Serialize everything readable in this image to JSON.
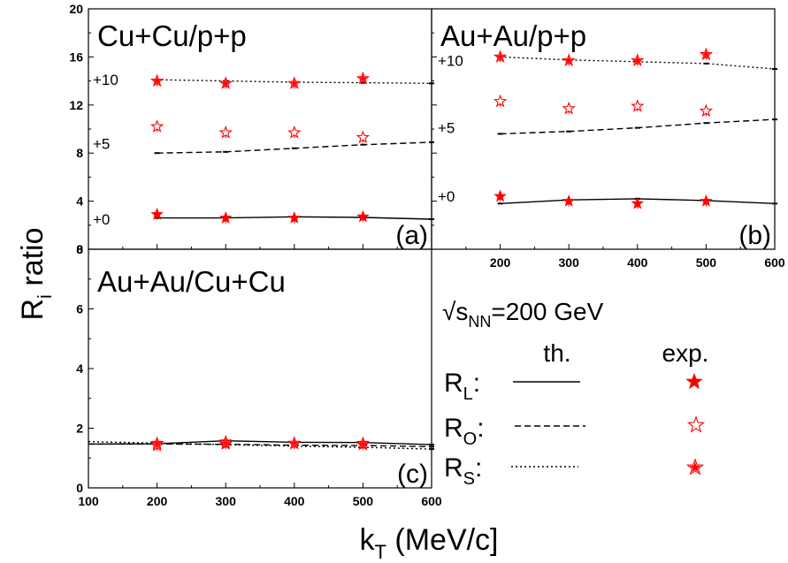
{
  "figure": {
    "ylabel_main": "R",
    "ylabel_sub": "i",
    "ylabel_rest": " ratio",
    "xlabel_main": "k",
    "xlabel_sub": "T",
    "xlabel_rest": " (MeV/c]",
    "colors": {
      "axes": "#000000",
      "exp": "#ff0000",
      "theory": "#000000"
    }
  },
  "legend": {
    "energy_prefix": "√s",
    "energy_sub": "NN",
    "energy_value": "=200 GeV",
    "th_header": "th.",
    "exp_header": "exp.",
    "rows": [
      {
        "label": "R",
        "sub": "L",
        "colon": ":",
        "line": "solid",
        "marker": "filled-star"
      },
      {
        "label": "R",
        "sub": "O",
        "colon": ":",
        "line": "dashed",
        "marker": "open-star"
      },
      {
        "label": "R",
        "sub": "S",
        "colon": ":",
        "line": "dotted",
        "marker": "star-filled-open"
      }
    ]
  },
  "chart_data": [
    {
      "type": "scatter",
      "panel_id": "a",
      "title": "Cu+Cu/p+p",
      "panel_label": "(a)",
      "xlim": [
        100,
        600
      ],
      "ylim": [
        0,
        20
      ],
      "yticks": [
        "0",
        "4",
        "8",
        "12",
        "16",
        "20"
      ],
      "xticks": [],
      "offset_labels": [
        {
          "text": "+10",
          "y": 14.1
        },
        {
          "text": "+5",
          "y": 8.8
        },
        {
          "text": "+0",
          "y": 2.5
        }
      ],
      "theory": [
        {
          "name": "R_L",
          "style": "solid",
          "x": [
            200,
            300,
            400,
            500,
            600
          ],
          "y": [
            2.6,
            2.6,
            2.7,
            2.65,
            2.5
          ]
        },
        {
          "name": "R_O",
          "style": "dashed",
          "x": [
            200,
            300,
            400,
            500,
            600
          ],
          "y": [
            8.0,
            8.1,
            8.4,
            8.7,
            8.9
          ]
        },
        {
          "name": "R_S",
          "style": "dotted",
          "x": [
            200,
            300,
            400,
            500,
            600
          ],
          "y": [
            14.1,
            14.0,
            13.9,
            13.85,
            13.8
          ]
        }
      ],
      "experiment": [
        {
          "name": "R_L",
          "marker": "filled-star",
          "x": [
            200,
            300,
            400,
            500
          ],
          "y": [
            2.9,
            2.6,
            2.6,
            2.7
          ]
        },
        {
          "name": "R_O",
          "marker": "open-star",
          "x": [
            200,
            300,
            400,
            500
          ],
          "y": [
            10.2,
            9.7,
            9.7,
            9.3
          ]
        },
        {
          "name": "R_S",
          "marker": "star-filled-open",
          "x": [
            200,
            300,
            400,
            500
          ],
          "y": [
            14.0,
            13.8,
            13.8,
            14.2
          ]
        }
      ]
    },
    {
      "type": "scatter",
      "panel_id": "b",
      "title": "Au+Au/p+p",
      "panel_label": "(b)",
      "xlim": [
        100,
        600
      ],
      "ylim": [
        0,
        20
      ],
      "yticks": [],
      "xticks": [
        "200",
        "300",
        "400",
        "500",
        "600"
      ],
      "offset_labels": [
        {
          "text": "+10",
          "y": 15.7
        },
        {
          "text": "+5",
          "y": 10.1
        },
        {
          "text": "+0",
          "y": 4.4
        }
      ],
      "theory": [
        {
          "name": "R_L",
          "style": "solid",
          "x": [
            200,
            300,
            400,
            500,
            600
          ],
          "y": [
            3.8,
            4.1,
            4.2,
            4.05,
            3.8
          ]
        },
        {
          "name": "R_O",
          "style": "dashed",
          "x": [
            200,
            300,
            400,
            500,
            600
          ],
          "y": [
            9.6,
            9.8,
            10.1,
            10.5,
            10.8
          ]
        },
        {
          "name": "R_S",
          "style": "dotted",
          "x": [
            200,
            300,
            400,
            500,
            600
          ],
          "y": [
            16.0,
            15.75,
            15.6,
            15.45,
            15.0
          ]
        }
      ],
      "experiment": [
        {
          "name": "R_L",
          "marker": "filled-star",
          "x": [
            200,
            300,
            400,
            500
          ],
          "y": [
            4.4,
            4.0,
            3.8,
            4.0
          ]
        },
        {
          "name": "R_O",
          "marker": "open-star",
          "x": [
            200,
            300,
            400,
            500
          ],
          "y": [
            12.3,
            11.7,
            11.9,
            11.5
          ]
        },
        {
          "name": "R_S",
          "marker": "star-filled-open",
          "x": [
            200,
            300,
            400,
            500
          ],
          "y": [
            16.0,
            15.7,
            15.7,
            16.2
          ]
        }
      ]
    },
    {
      "type": "scatter",
      "panel_id": "c",
      "title": "Au+Au/Cu+Cu",
      "panel_label": "(c)",
      "xlim": [
        100,
        600
      ],
      "ylim": [
        0,
        8
      ],
      "yticks": [
        "0",
        "2",
        "4",
        "6",
        "8"
      ],
      "xticks": [
        "100",
        "200",
        "300",
        "400",
        "500",
        "600"
      ],
      "offset_labels": [],
      "theory": [
        {
          "name": "R_L",
          "style": "solid",
          "x": [
            100,
            200,
            300,
            400,
            500,
            600
          ],
          "y": [
            1.47,
            1.48,
            1.58,
            1.53,
            1.52,
            1.45
          ]
        },
        {
          "name": "R_O",
          "style": "dashed",
          "x": [
            100,
            200,
            300,
            400,
            500,
            600
          ],
          "y": [
            1.47,
            1.47,
            1.46,
            1.43,
            1.42,
            1.38
          ]
        },
        {
          "name": "R_S",
          "style": "dotted",
          "x": [
            100,
            200,
            300,
            400,
            500,
            600
          ],
          "y": [
            1.55,
            1.5,
            1.45,
            1.4,
            1.36,
            1.3
          ]
        }
      ],
      "experiment": [
        {
          "name": "R_L",
          "marker": "filled-star",
          "x": [
            200,
            300,
            400,
            500
          ],
          "y": [
            1.5,
            1.55,
            1.5,
            1.5
          ]
        },
        {
          "name": "R_O",
          "marker": "open-star",
          "x": [
            200,
            300,
            400,
            500
          ],
          "y": [
            1.42,
            1.47,
            1.48,
            1.45
          ]
        },
        {
          "name": "R_S",
          "marker": "star-filled-open",
          "x": [
            200,
            300,
            400,
            500
          ],
          "y": [
            1.48,
            1.5,
            1.5,
            1.48
          ]
        }
      ]
    }
  ]
}
